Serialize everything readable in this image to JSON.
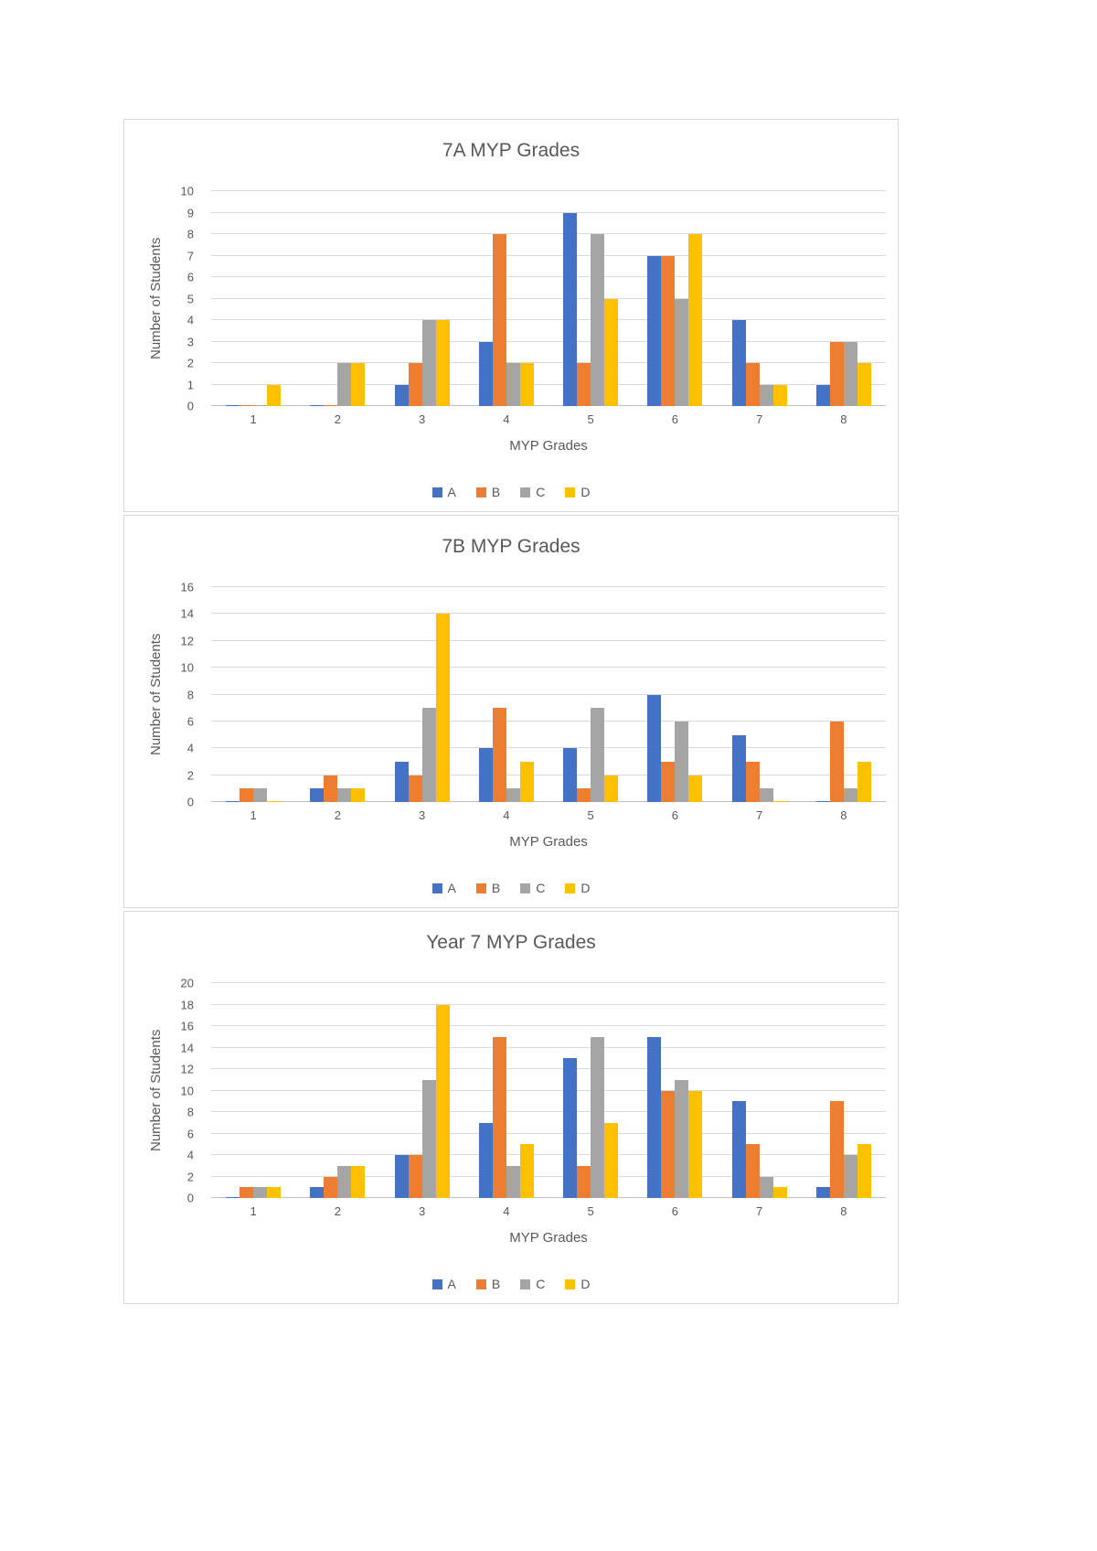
{
  "colors": {
    "series_a": "#4472C4",
    "series_b": "#ED7D31",
    "series_c": "#A5A5A5",
    "series_d": "#FFC000",
    "gridline": "#D9D9D9",
    "axis_line": "#BFBFBF",
    "text": "#595959",
    "background": "#FFFFFF"
  },
  "chart_data": [
    {
      "type": "bar",
      "title": "7A MYP Grades",
      "ylabel": "Number of Students",
      "xlabel": "MYP Grades",
      "ymax": 10,
      "ystep": 1,
      "ylim": [
        0,
        10
      ],
      "grid": true,
      "legend_position": "bottom",
      "categories": [
        "1",
        "2",
        "3",
        "4",
        "5",
        "6",
        "7",
        "8"
      ],
      "series": [
        {
          "name": "A",
          "color": "#4472C4",
          "values": [
            0,
            0,
            1,
            3,
            9,
            7,
            4,
            1
          ]
        },
        {
          "name": "B",
          "color": "#ED7D31",
          "values": [
            0,
            0,
            2,
            8,
            2,
            7,
            2,
            3
          ]
        },
        {
          "name": "C",
          "color": "#A5A5A5",
          "values": [
            0,
            2,
            4,
            2,
            8,
            5,
            1,
            3
          ]
        },
        {
          "name": "D",
          "color": "#FFC000",
          "values": [
            1,
            2,
            4,
            2,
            5,
            8,
            1,
            2
          ]
        }
      ]
    },
    {
      "type": "bar",
      "title": "7B MYP Grades",
      "ylabel": "Number of Students",
      "xlabel": "MYP Grades",
      "ymax": 16,
      "ystep": 2,
      "ylim": [
        0,
        16
      ],
      "grid": true,
      "legend_position": "bottom",
      "categories": [
        "1",
        "2",
        "3",
        "4",
        "5",
        "6",
        "7",
        "8"
      ],
      "series": [
        {
          "name": "A",
          "color": "#4472C4",
          "values": [
            0,
            1,
            3,
            4,
            4,
            8,
            5,
            0
          ]
        },
        {
          "name": "B",
          "color": "#ED7D31",
          "values": [
            1,
            2,
            2,
            7,
            1,
            3,
            3,
            6
          ]
        },
        {
          "name": "C",
          "color": "#A5A5A5",
          "values": [
            1,
            1,
            7,
            1,
            7,
            6,
            1,
            1
          ]
        },
        {
          "name": "D",
          "color": "#FFC000",
          "values": [
            0,
            1,
            14,
            3,
            2,
            2,
            0,
            3
          ]
        }
      ]
    },
    {
      "type": "bar",
      "title": "Year 7 MYP Grades",
      "ylabel": "Number of Students",
      "xlabel": "MYP Grades",
      "ymax": 20,
      "ystep": 2,
      "ylim": [
        0,
        20
      ],
      "grid": true,
      "legend_position": "bottom",
      "categories": [
        "1",
        "2",
        "3",
        "4",
        "5",
        "6",
        "7",
        "8"
      ],
      "series": [
        {
          "name": "A",
          "color": "#4472C4",
          "values": [
            0,
            1,
            4,
            7,
            13,
            15,
            9,
            1
          ]
        },
        {
          "name": "B",
          "color": "#ED7D31",
          "values": [
            1,
            2,
            4,
            15,
            3,
            10,
            5,
            9
          ]
        },
        {
          "name": "C",
          "color": "#A5A5A5",
          "values": [
            1,
            3,
            11,
            3,
            15,
            11,
            2,
            4
          ]
        },
        {
          "name": "D",
          "color": "#FFC000",
          "values": [
            1,
            3,
            18,
            5,
            7,
            10,
            1,
            5
          ]
        }
      ]
    }
  ]
}
